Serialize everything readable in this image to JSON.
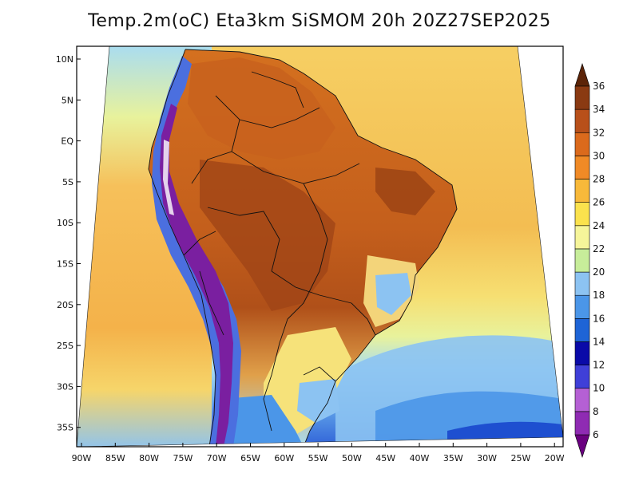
{
  "title": "Temp.2m(oC) Eta3km SiSMOM 20h 20Z27SEP2025",
  "axes": {
    "lon_labels": [
      "90W",
      "85W",
      "80W",
      "75W",
      "70W",
      "65W",
      "60W",
      "55W",
      "50W",
      "45W",
      "40W",
      "35W",
      "30W",
      "25W",
      "20W"
    ],
    "lat_labels": [
      "10N",
      "5N",
      "EQ",
      "5S",
      "10S",
      "15S",
      "20S",
      "25S",
      "30S",
      "35S"
    ]
  },
  "colorbar": {
    "labels": [
      "6",
      "8",
      "10",
      "12",
      "14",
      "16",
      "18",
      "20",
      "22",
      "24",
      "26",
      "28",
      "30",
      "32",
      "34",
      "36"
    ],
    "colors": [
      "#6a0080",
      "#8f2bb3",
      "#b560d4",
      "#3f3fd8",
      "#0a0aa8",
      "#1e64d6",
      "#4b96e8",
      "#8cc3f2",
      "#c7ed9a",
      "#f6f59a",
      "#fbe24d",
      "#f8b93a",
      "#f08a26",
      "#db6a1c",
      "#b8501a",
      "#8a3a12",
      "#5c2408"
    ]
  },
  "map": {
    "ocean_colors": [
      "#f2b54a",
      "#f6c95a",
      "#f8e070",
      "#e9f29a",
      "#a5dcf2",
      "#5b9ee8",
      "#2f5fd6"
    ],
    "land_colors": [
      "#e07e2a",
      "#cf6a22",
      "#b8561c",
      "#8a3a12",
      "#f3c070",
      "#ffe9a0"
    ],
    "andes_colors": [
      "#3f3fd8",
      "#6a0080",
      "#8cc3f2",
      "#ffffff"
    ]
  }
}
